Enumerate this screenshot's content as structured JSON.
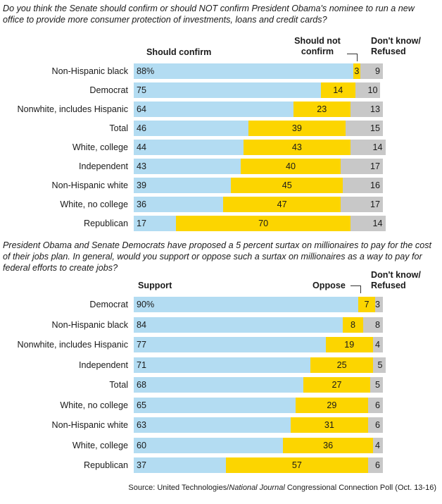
{
  "chart_data": [
    {
      "type": "bar",
      "orientation": "horizontal",
      "stacked": true,
      "title": "Do you think the Senate should confirm or should NOT confirm President Obama's nominee to run a new office to provide more consumer protection of investments, loans and credit cards?",
      "series_labels": [
        "Should confirm",
        "Should not confirm",
        "Don't know/ Refused"
      ],
      "categories": [
        "Non-Hispanic black",
        "Democrat",
        "Nonwhite, includes Hispanic",
        "Total",
        "White, college",
        "Independent",
        "Non-Hispanic white",
        "White, no college",
        "Republican"
      ],
      "series": [
        {
          "name": "Should confirm",
          "values": [
            88,
            75,
            64,
            46,
            44,
            43,
            39,
            36,
            17
          ],
          "display": [
            "88%",
            "75",
            "64",
            "46",
            "44",
            "43",
            "39",
            "36",
            "17"
          ]
        },
        {
          "name": "Should not confirm",
          "values": [
            3,
            14,
            23,
            39,
            43,
            40,
            45,
            47,
            70
          ],
          "display": [
            "3",
            "14",
            "23",
            "39",
            "43",
            "40",
            "45",
            "47",
            "70"
          ]
        },
        {
          "name": "Don't know/ Refused",
          "values": [
            9,
            10,
            13,
            15,
            14,
            17,
            16,
            17,
            14
          ],
          "display": [
            "9",
            "10",
            "13",
            "15",
            "14",
            "17",
            "16",
            "17",
            "14"
          ]
        }
      ],
      "xlim": [
        0,
        100
      ]
    },
    {
      "type": "bar",
      "orientation": "horizontal",
      "stacked": true,
      "title": "President Obama and Senate Democrats have proposed a 5 percent surtax on millionaires to pay for the cost of their jobs plan. In general, would you support or oppose such a surtax on millionaires as a way to pay for federal efforts to create jobs?",
      "series_labels": [
        "Support",
        "Oppose",
        "Don't know/ Refused"
      ],
      "categories": [
        "Democrat",
        "Non-Hispanic black",
        "Nonwhite, includes Hispanic",
        "Independent",
        "Total",
        "White, no college",
        "Non-Hispanic white",
        "White, college",
        "Republican"
      ],
      "series": [
        {
          "name": "Support",
          "values": [
            90,
            84,
            77,
            71,
            68,
            65,
            63,
            60,
            37
          ],
          "display": [
            "90%",
            "84",
            "77",
            "71",
            "68",
            "65",
            "63",
            "60",
            "37"
          ]
        },
        {
          "name": "Oppose",
          "values": [
            7,
            8,
            19,
            25,
            27,
            29,
            31,
            36,
            57
          ],
          "display": [
            "7",
            "8",
            "19",
            "25",
            "27",
            "29",
            "31",
            "36",
            "57"
          ]
        },
        {
          "name": "Don't know/ Refused",
          "values": [
            3,
            8,
            4,
            5,
            5,
            6,
            6,
            4,
            6
          ],
          "display": [
            "3",
            "8",
            "4",
            "5",
            "5",
            "6",
            "6",
            "4",
            "6"
          ]
        }
      ],
      "xlim": [
        0,
        100
      ]
    }
  ],
  "colors": {
    "series1": "#b3dcf2",
    "series2": "#fcd500",
    "series3": "#c8c8c8"
  },
  "source": {
    "prefix": "Source: United Technologies/",
    "italic": "National Journal",
    "suffix": " Congressional Connection Poll (Oct. 13-16)"
  }
}
